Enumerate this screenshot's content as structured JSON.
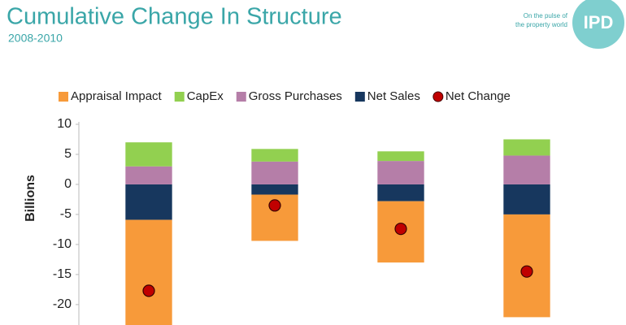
{
  "chart_data": {
    "type": "bar",
    "title": "Cumulative Change In Structure",
    "subtitle": "2008-2010",
    "logo": {
      "text": "IPD",
      "tagline": [
        "On the pulse of",
        "the property world"
      ]
    },
    "y_label": "Billions",
    "categories": [
      null,
      null,
      null,
      null
    ],
    "stacked": true,
    "series": [
      {
        "name": "Appraisal Impact",
        "color": "#f79a3a",
        "values": [
          -18,
          -7.7,
          -10.2,
          -17.1
        ]
      },
      {
        "name": "CapEx",
        "color": "#92d050",
        "values": [
          4,
          2.1,
          1.6,
          2.7
        ]
      },
      {
        "name": "Gross Purchases",
        "color": "#b57ea8",
        "values": [
          3,
          3.8,
          3.9,
          4.8
        ]
      },
      {
        "name": "Net Sales",
        "color": "#17375e",
        "values": [
          -5.9,
          -1.7,
          -2.8,
          -5
        ]
      },
      {
        "name": "Net Change",
        "color": "#c00000",
        "type": "scatter",
        "values": [
          -17.7,
          -3.5,
          -7.4,
          -14.5
        ]
      }
    ],
    "ylim": [
      -23.4,
      10
    ],
    "yticks": [
      -20,
      -15,
      -10,
      -5,
      0,
      5,
      10
    ],
    "grid": false
  }
}
